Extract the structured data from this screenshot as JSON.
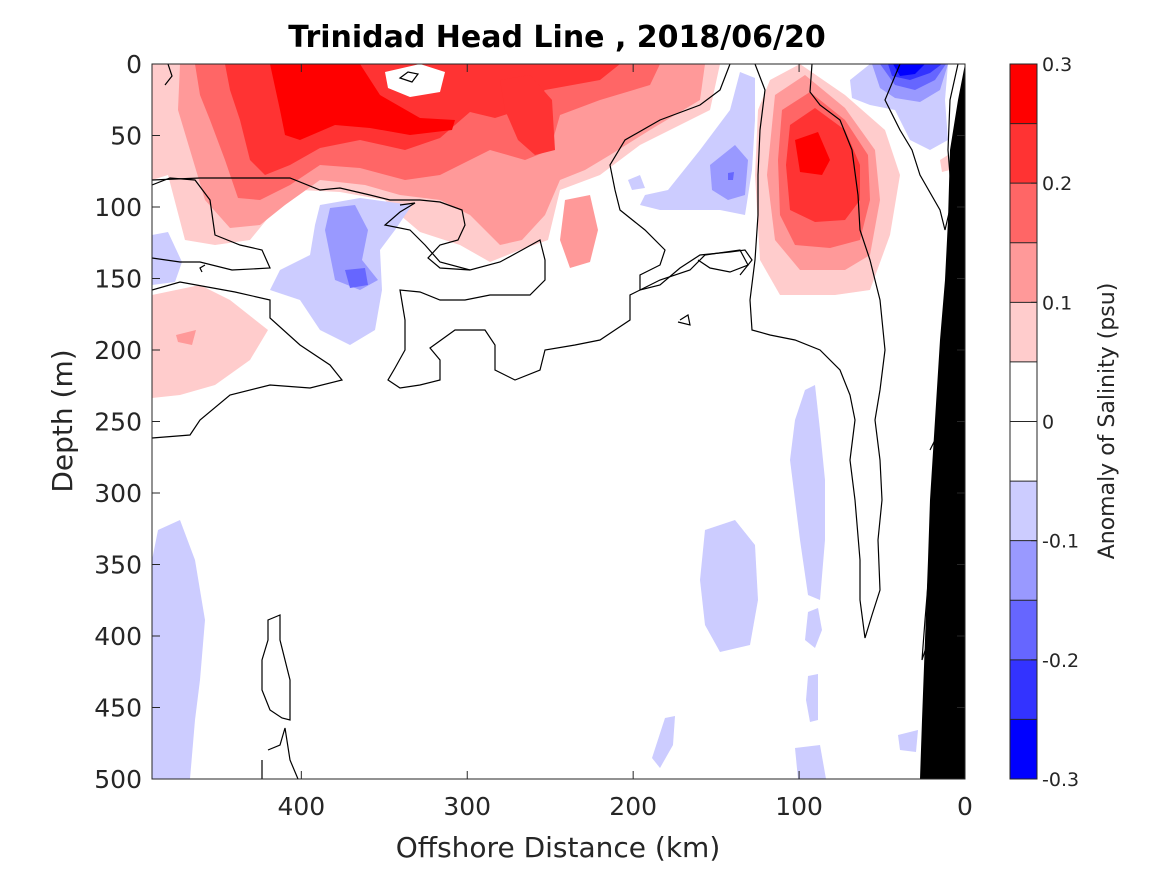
{
  "chart_data": {
    "type": "contour",
    "title": "Trinidad Head Line , 2018/06/20",
    "xlabel": "Offshore Distance (km)",
    "ylabel": "Depth (m)",
    "xlim": [
      490,
      0
    ],
    "ylim": [
      0,
      500
    ],
    "x_reversed": true,
    "y_reversed": true,
    "xticks": [
      "400",
      "300",
      "200",
      "100",
      "0"
    ],
    "yticks": [
      "0",
      "50",
      "100",
      "150",
      "200",
      "250",
      "300",
      "350",
      "400",
      "450",
      "500"
    ],
    "colorbar": {
      "label": "Anomaly of Salinity (psu)",
      "range": [
        -0.3,
        0.3
      ],
      "ticks": [
        "0.3",
        "0.2",
        "0.1",
        "0",
        "-0.1",
        "-0.2",
        "-0.3"
      ],
      "levels": [
        -0.3,
        -0.25,
        -0.2,
        -0.15,
        -0.1,
        -0.05,
        0.05,
        0.1,
        0.15,
        0.2,
        0.25,
        0.3
      ],
      "colors_top_to_bottom": [
        "#ff0000",
        "#ff3333",
        "#ff6666",
        "#ff9999",
        "#ffcccc",
        "#ffffff",
        "#ffffff",
        "#ccccff",
        "#9999ff",
        "#6666ff",
        "#3333ff",
        "#0000ff"
      ]
    },
    "features": [
      {
        "name": "positive anomaly core",
        "x": 380,
        "y": 40,
        "value": 0.3
      },
      {
        "name": "positive anomaly core",
        "x": 90,
        "y": 70,
        "value": 0.25
      },
      {
        "name": "negative anomaly",
        "x": 360,
        "y": 140,
        "value": -0.15
      },
      {
        "name": "negative anomaly",
        "x": 140,
        "y": 80,
        "value": -0.15
      },
      {
        "name": "negative anomaly",
        "x": 35,
        "y": 5,
        "value": -0.25
      },
      {
        "name": "positive anomaly",
        "x": 460,
        "y": 195,
        "value": 0.1
      }
    ],
    "bathymetry_color": "#000000"
  }
}
